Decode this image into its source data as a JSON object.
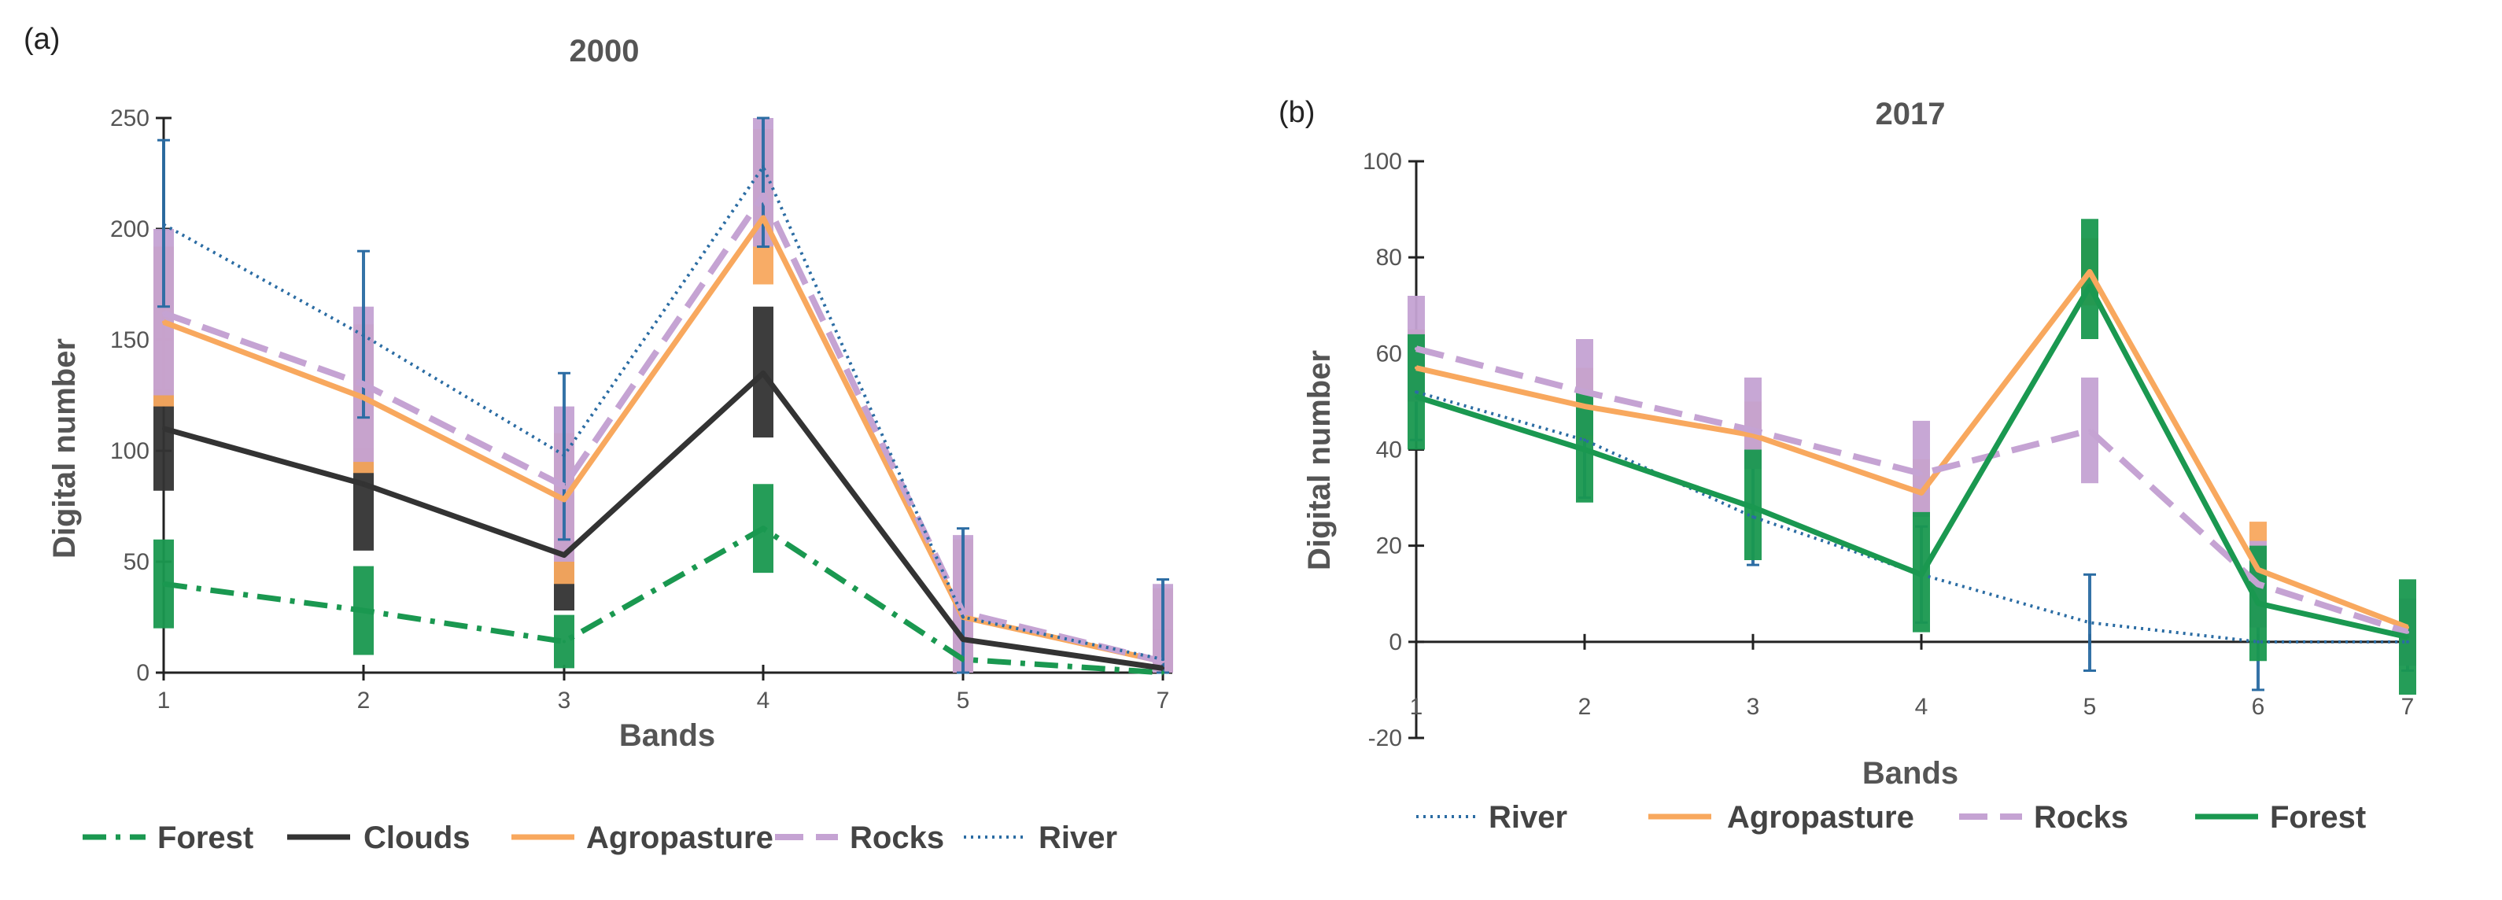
{
  "chart_data": [
    {
      "panel": "(a)",
      "type": "line",
      "title": "2000",
      "xlabel": "Bands",
      "ylabel": "Digital number",
      "categories": [
        "1",
        "2",
        "3",
        "4",
        "5",
        "7"
      ],
      "ylim": [
        0,
        250
      ],
      "yticks": [
        "0",
        "50",
        "100",
        "150",
        "200",
        "250"
      ],
      "grid": false,
      "legend_position": "bottom",
      "series": [
        {
          "name": "Forest",
          "color": "#1a9850",
          "dash": "dashdot",
          "values": [
            40,
            28,
            14,
            65,
            6,
            0
          ],
          "error_low": [
            20,
            8,
            2,
            45,
            0,
            0
          ],
          "error_high": [
            60,
            48,
            26,
            85,
            12,
            2
          ]
        },
        {
          "name": "Clouds",
          "color": "#333333",
          "dash": "solid",
          "values": [
            110,
            85,
            53,
            135,
            15,
            2
          ],
          "error_low": [
            82,
            55,
            28,
            106,
            0,
            0
          ],
          "error_high": [
            128,
            101,
            80,
            165,
            30,
            20
          ]
        },
        {
          "name": "Agropasture",
          "color": "#f8a85e",
          "dash": "solid",
          "values": [
            158,
            124,
            78,
            205,
            25,
            5
          ],
          "error_low": [
            120,
            90,
            40,
            175,
            0,
            0
          ],
          "error_high": [
            192,
            157,
            108,
            245,
            60,
            38
          ]
        },
        {
          "name": "Rocks",
          "color": "#c5a3d3",
          "dash": "longdash",
          "values": [
            162,
            130,
            84,
            215,
            27,
            5
          ],
          "error_low": [
            125,
            95,
            50,
            192,
            0,
            0
          ],
          "error_high": [
            200,
            165,
            120,
            255,
            62,
            40
          ]
        },
        {
          "name": "River",
          "color": "#2b6ca3",
          "dash": "dotted",
          "values": [
            202,
            152,
            98,
            228,
            25,
            6
          ],
          "error_low": [
            165,
            115,
            60,
            192,
            0,
            0
          ],
          "error_high": [
            240,
            190,
            135,
            255,
            65,
            42
          ]
        }
      ]
    },
    {
      "panel": "(b)",
      "type": "line",
      "title": "2017",
      "xlabel": "Bands",
      "ylabel": "Digital number",
      "categories": [
        "1",
        "2",
        "3",
        "4",
        "5",
        "6",
        "7"
      ],
      "ylim": [
        -20,
        100
      ],
      "yticks": [
        "-20",
        "0",
        "20",
        "40",
        "60",
        "80",
        "100"
      ],
      "grid": false,
      "legend_position": "bottom",
      "series": [
        {
          "name": "River",
          "color": "#2b6ca3",
          "dash": "dotted",
          "values": [
            52,
            42,
            26,
            14,
            4,
            0,
            0
          ],
          "error_low": [
            42,
            30,
            16,
            4,
            -6,
            -10,
            -6
          ],
          "error_high": [
            62,
            52,
            38,
            24,
            14,
            10,
            6
          ]
        },
        {
          "name": "Agropasture",
          "color": "#f8a85e",
          "dash": "solid",
          "values": [
            57,
            49,
            43,
            31,
            77,
            15,
            3
          ],
          "error_low": [
            50,
            42,
            36,
            26,
            70,
            7,
            -2
          ],
          "error_high": [
            65,
            57,
            50,
            38,
            84,
            25,
            8
          ]
        },
        {
          "name": "Rocks",
          "color": "#c5a3d3",
          "dash": "longdash",
          "values": [
            61,
            52,
            44,
            35,
            44,
            12,
            2
          ],
          "error_low": [
            50,
            43,
            36,
            26,
            33,
            3,
            -5
          ],
          "error_high": [
            72,
            63,
            55,
            46,
            55,
            21,
            9
          ]
        },
        {
          "name": "Forest",
          "color": "#1a9850",
          "dash": "solid",
          "values": [
            51,
            40,
            28,
            14,
            74,
            8,
            1
          ],
          "error_low": [
            40,
            29,
            17,
            2,
            63,
            -4,
            -11
          ],
          "error_high": [
            64,
            52,
            40,
            27,
            88,
            20,
            13
          ]
        }
      ]
    }
  ]
}
